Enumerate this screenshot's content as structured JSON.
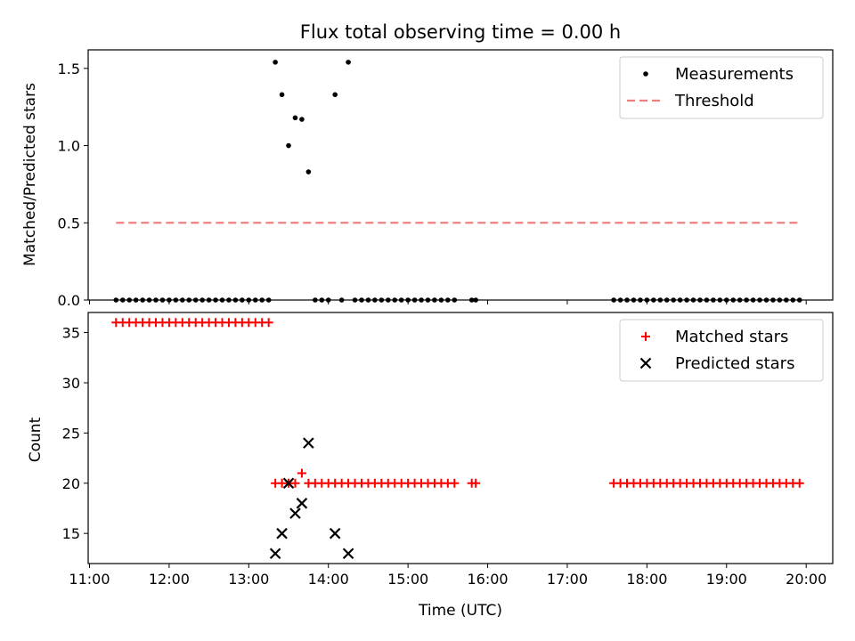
{
  "chart_data": [
    {
      "type": "scatter",
      "title": "Flux total observing time = 0.00 h",
      "xlabel": "",
      "ylabel": "Matched/Predicted stars",
      "xlim": [
        "11:00",
        "20:00"
      ],
      "ylim": [
        0,
        1.62
      ],
      "y_ticks": [
        "0.0",
        "0.5",
        "1.0",
        "1.5"
      ],
      "legend_position": "top-right",
      "series": [
        {
          "name": "Measurements",
          "marker": "dot",
          "color": "#000000",
          "points": [
            {
              "t": "11:20",
              "v": 0
            },
            {
              "t": "11:25",
              "v": 0
            },
            {
              "t": "11:30",
              "v": 0
            },
            {
              "t": "11:35",
              "v": 0
            },
            {
              "t": "11:40",
              "v": 0
            },
            {
              "t": "11:45",
              "v": 0
            },
            {
              "t": "11:50",
              "v": 0
            },
            {
              "t": "11:55",
              "v": 0
            },
            {
              "t": "12:00",
              "v": 0
            },
            {
              "t": "12:05",
              "v": 0
            },
            {
              "t": "12:10",
              "v": 0
            },
            {
              "t": "12:15",
              "v": 0
            },
            {
              "t": "12:20",
              "v": 0
            },
            {
              "t": "12:25",
              "v": 0
            },
            {
              "t": "12:30",
              "v": 0
            },
            {
              "t": "12:35",
              "v": 0
            },
            {
              "t": "12:40",
              "v": 0
            },
            {
              "t": "12:45",
              "v": 0
            },
            {
              "t": "12:50",
              "v": 0
            },
            {
              "t": "12:55",
              "v": 0
            },
            {
              "t": "13:00",
              "v": 0
            },
            {
              "t": "13:05",
              "v": 0
            },
            {
              "t": "13:10",
              "v": 0
            },
            {
              "t": "13:15",
              "v": 0
            },
            {
              "t": "13:20",
              "v": 1.54
            },
            {
              "t": "13:25",
              "v": 1.33
            },
            {
              "t": "13:30",
              "v": 1.0
            },
            {
              "t": "13:35",
              "v": 1.18
            },
            {
              "t": "13:40",
              "v": 1.17
            },
            {
              "t": "13:45",
              "v": 0.83
            },
            {
              "t": "13:50",
              "v": 0
            },
            {
              "t": "13:55",
              "v": 0
            },
            {
              "t": "14:00",
              "v": 0
            },
            {
              "t": "14:05",
              "v": 1.33
            },
            {
              "t": "14:10",
              "v": 0
            },
            {
              "t": "14:15",
              "v": 1.54
            },
            {
              "t": "14:20",
              "v": 0
            },
            {
              "t": "14:25",
              "v": 0
            },
            {
              "t": "14:30",
              "v": 0
            },
            {
              "t": "14:35",
              "v": 0
            },
            {
              "t": "14:40",
              "v": 0
            },
            {
              "t": "14:45",
              "v": 0
            },
            {
              "t": "14:50",
              "v": 0
            },
            {
              "t": "14:55",
              "v": 0
            },
            {
              "t": "15:00",
              "v": 0
            },
            {
              "t": "15:05",
              "v": 0
            },
            {
              "t": "15:10",
              "v": 0
            },
            {
              "t": "15:15",
              "v": 0
            },
            {
              "t": "15:20",
              "v": 0
            },
            {
              "t": "15:25",
              "v": 0
            },
            {
              "t": "15:30",
              "v": 0
            },
            {
              "t": "15:35",
              "v": 0
            },
            {
              "t": "15:48",
              "v": 0
            },
            {
              "t": "15:51",
              "v": 0
            },
            {
              "t": "17:35",
              "v": 0
            },
            {
              "t": "17:40",
              "v": 0
            },
            {
              "t": "17:45",
              "v": 0
            },
            {
              "t": "17:50",
              "v": 0
            },
            {
              "t": "17:55",
              "v": 0
            },
            {
              "t": "18:00",
              "v": 0
            },
            {
              "t": "18:05",
              "v": 0
            },
            {
              "t": "18:10",
              "v": 0
            },
            {
              "t": "18:15",
              "v": 0
            },
            {
              "t": "18:20",
              "v": 0
            },
            {
              "t": "18:25",
              "v": 0
            },
            {
              "t": "18:30",
              "v": 0
            },
            {
              "t": "18:35",
              "v": 0
            },
            {
              "t": "18:40",
              "v": 0
            },
            {
              "t": "18:45",
              "v": 0
            },
            {
              "t": "18:50",
              "v": 0
            },
            {
              "t": "18:55",
              "v": 0
            },
            {
              "t": "19:00",
              "v": 0
            },
            {
              "t": "19:05",
              "v": 0
            },
            {
              "t": "19:10",
              "v": 0
            },
            {
              "t": "19:15",
              "v": 0
            },
            {
              "t": "19:20",
              "v": 0
            },
            {
              "t": "19:25",
              "v": 0
            },
            {
              "t": "19:30",
              "v": 0
            },
            {
              "t": "19:35",
              "v": 0
            },
            {
              "t": "19:40",
              "v": 0
            },
            {
              "t": "19:45",
              "v": 0
            },
            {
              "t": "19:50",
              "v": 0
            },
            {
              "t": "19:55",
              "v": 0
            }
          ]
        },
        {
          "name": "Threshold",
          "marker": "dashed-line",
          "color": "#f08080",
          "points": [
            {
              "t": "11:20",
              "v": 0.5
            },
            {
              "t": "19:55",
              "v": 0.5
            }
          ]
        }
      ]
    },
    {
      "type": "scatter",
      "title": "",
      "xlabel": "Time (UTC)",
      "ylabel": "Count",
      "xlim": [
        "11:00",
        "20:00"
      ],
      "ylim": [
        12,
        37
      ],
      "y_ticks": [
        "15",
        "20",
        "25",
        "30",
        "35"
      ],
      "x_ticks": [
        "11:00",
        "12:00",
        "13:00",
        "14:00",
        "15:00",
        "16:00",
        "17:00",
        "18:00",
        "19:00",
        "20:00"
      ],
      "legend_position": "top-right",
      "series": [
        {
          "name": "Matched stars",
          "marker": "plus",
          "color": "#ff0000",
          "points": [
            {
              "t": "11:20",
              "v": 36
            },
            {
              "t": "11:25",
              "v": 36
            },
            {
              "t": "11:30",
              "v": 36
            },
            {
              "t": "11:35",
              "v": 36
            },
            {
              "t": "11:40",
              "v": 36
            },
            {
              "t": "11:45",
              "v": 36
            },
            {
              "t": "11:50",
              "v": 36
            },
            {
              "t": "11:55",
              "v": 36
            },
            {
              "t": "12:00",
              "v": 36
            },
            {
              "t": "12:05",
              "v": 36
            },
            {
              "t": "12:10",
              "v": 36
            },
            {
              "t": "12:15",
              "v": 36
            },
            {
              "t": "12:20",
              "v": 36
            },
            {
              "t": "12:25",
              "v": 36
            },
            {
              "t": "12:30",
              "v": 36
            },
            {
              "t": "12:35",
              "v": 36
            },
            {
              "t": "12:40",
              "v": 36
            },
            {
              "t": "12:45",
              "v": 36
            },
            {
              "t": "12:50",
              "v": 36
            },
            {
              "t": "12:55",
              "v": 36
            },
            {
              "t": "13:00",
              "v": 36
            },
            {
              "t": "13:05",
              "v": 36
            },
            {
              "t": "13:10",
              "v": 36
            },
            {
              "t": "13:15",
              "v": 36
            },
            {
              "t": "13:20",
              "v": 20
            },
            {
              "t": "13:25",
              "v": 20
            },
            {
              "t": "13:30",
              "v": 20
            },
            {
              "t": "13:35",
              "v": 20
            },
            {
              "t": "13:40",
              "v": 21
            },
            {
              "t": "13:45",
              "v": 20
            },
            {
              "t": "13:50",
              "v": 20
            },
            {
              "t": "13:55",
              "v": 20
            },
            {
              "t": "14:00",
              "v": 20
            },
            {
              "t": "14:05",
              "v": 20
            },
            {
              "t": "14:10",
              "v": 20
            },
            {
              "t": "14:15",
              "v": 20
            },
            {
              "t": "14:20",
              "v": 20
            },
            {
              "t": "14:25",
              "v": 20
            },
            {
              "t": "14:30",
              "v": 20
            },
            {
              "t": "14:35",
              "v": 20
            },
            {
              "t": "14:40",
              "v": 20
            },
            {
              "t": "14:45",
              "v": 20
            },
            {
              "t": "14:50",
              "v": 20
            },
            {
              "t": "14:55",
              "v": 20
            },
            {
              "t": "15:00",
              "v": 20
            },
            {
              "t": "15:05",
              "v": 20
            },
            {
              "t": "15:10",
              "v": 20
            },
            {
              "t": "15:15",
              "v": 20
            },
            {
              "t": "15:20",
              "v": 20
            },
            {
              "t": "15:25",
              "v": 20
            },
            {
              "t": "15:30",
              "v": 20
            },
            {
              "t": "15:35",
              "v": 20
            },
            {
              "t": "15:48",
              "v": 20
            },
            {
              "t": "15:51",
              "v": 20
            },
            {
              "t": "17:35",
              "v": 20
            },
            {
              "t": "17:40",
              "v": 20
            },
            {
              "t": "17:45",
              "v": 20
            },
            {
              "t": "17:50",
              "v": 20
            },
            {
              "t": "17:55",
              "v": 20
            },
            {
              "t": "18:00",
              "v": 20
            },
            {
              "t": "18:05",
              "v": 20
            },
            {
              "t": "18:10",
              "v": 20
            },
            {
              "t": "18:15",
              "v": 20
            },
            {
              "t": "18:20",
              "v": 20
            },
            {
              "t": "18:25",
              "v": 20
            },
            {
              "t": "18:30",
              "v": 20
            },
            {
              "t": "18:35",
              "v": 20
            },
            {
              "t": "18:40",
              "v": 20
            },
            {
              "t": "18:45",
              "v": 20
            },
            {
              "t": "18:50",
              "v": 20
            },
            {
              "t": "18:55",
              "v": 20
            },
            {
              "t": "19:00",
              "v": 20
            },
            {
              "t": "19:05",
              "v": 20
            },
            {
              "t": "19:10",
              "v": 20
            },
            {
              "t": "19:15",
              "v": 20
            },
            {
              "t": "19:20",
              "v": 20
            },
            {
              "t": "19:25",
              "v": 20
            },
            {
              "t": "19:30",
              "v": 20
            },
            {
              "t": "19:35",
              "v": 20
            },
            {
              "t": "19:40",
              "v": 20
            },
            {
              "t": "19:45",
              "v": 20
            },
            {
              "t": "19:50",
              "v": 20
            },
            {
              "t": "19:55",
              "v": 20
            }
          ]
        },
        {
          "name": "Predicted stars",
          "marker": "x",
          "color": "#000000",
          "points": [
            {
              "t": "13:20",
              "v": 13
            },
            {
              "t": "13:25",
              "v": 15
            },
            {
              "t": "13:30",
              "v": 20
            },
            {
              "t": "13:35",
              "v": 17
            },
            {
              "t": "13:40",
              "v": 18
            },
            {
              "t": "13:45",
              "v": 24
            },
            {
              "t": "14:05",
              "v": 15
            },
            {
              "t": "14:15",
              "v": 13
            }
          ]
        }
      ]
    }
  ]
}
